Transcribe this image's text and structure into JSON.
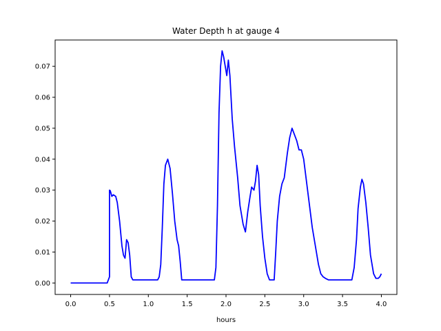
{
  "chart_data": {
    "type": "line",
    "title": "Water Depth h at gauge 4",
    "xlabel": "hours",
    "ylabel": "",
    "xlim": [
      -0.2,
      4.2
    ],
    "ylim": [
      -0.0037,
      0.0785
    ],
    "grid": false,
    "xticks": [
      0.0,
      0.5,
      1.0,
      1.5,
      2.0,
      2.5,
      3.0,
      3.5,
      4.0
    ],
    "xtick_labels": [
      "0.0",
      "0.5",
      "1.0",
      "1.5",
      "2.0",
      "2.5",
      "3.0",
      "3.5",
      "4.0"
    ],
    "yticks": [
      0.0,
      0.01,
      0.02,
      0.03,
      0.04,
      0.05,
      0.06,
      0.07
    ],
    "ytick_labels": [
      "0.00",
      "0.01",
      "0.02",
      "0.03",
      "0.04",
      "0.05",
      "0.06",
      "0.07"
    ],
    "series": [
      {
        "color": "#0000ff",
        "points": [
          [
            0.0,
            0.0
          ],
          [
            0.47,
            0.0
          ],
          [
            0.5,
            0.002
          ],
          [
            0.5,
            0.03
          ],
          [
            0.51,
            0.0298
          ],
          [
            0.53,
            0.028
          ],
          [
            0.55,
            0.0285
          ],
          [
            0.58,
            0.028
          ],
          [
            0.6,
            0.026
          ],
          [
            0.63,
            0.02
          ],
          [
            0.66,
            0.012
          ],
          [
            0.68,
            0.009
          ],
          [
            0.7,
            0.008
          ],
          [
            0.72,
            0.014
          ],
          [
            0.74,
            0.013
          ],
          [
            0.76,
            0.009
          ],
          [
            0.78,
            0.002
          ],
          [
            0.8,
            0.001
          ],
          [
            1.12,
            0.001
          ],
          [
            1.14,
            0.002
          ],
          [
            1.16,
            0.006
          ],
          [
            1.18,
            0.018
          ],
          [
            1.2,
            0.032
          ],
          [
            1.22,
            0.038
          ],
          [
            1.25,
            0.04
          ],
          [
            1.28,
            0.037
          ],
          [
            1.31,
            0.029
          ],
          [
            1.34,
            0.02
          ],
          [
            1.37,
            0.014
          ],
          [
            1.39,
            0.012
          ],
          [
            1.41,
            0.007
          ],
          [
            1.43,
            0.001
          ],
          [
            1.85,
            0.001
          ],
          [
            1.87,
            0.005
          ],
          [
            1.89,
            0.025
          ],
          [
            1.91,
            0.055
          ],
          [
            1.93,
            0.07
          ],
          [
            1.95,
            0.075
          ],
          [
            1.97,
            0.073
          ],
          [
            1.99,
            0.07
          ],
          [
            2.01,
            0.067
          ],
          [
            2.03,
            0.072
          ],
          [
            2.05,
            0.067
          ],
          [
            2.08,
            0.053
          ],
          [
            2.11,
            0.044
          ],
          [
            2.15,
            0.034
          ],
          [
            2.18,
            0.025
          ],
          [
            2.22,
            0.019
          ],
          [
            2.25,
            0.0165
          ],
          [
            2.28,
            0.023
          ],
          [
            2.31,
            0.028
          ],
          [
            2.33,
            0.031
          ],
          [
            2.36,
            0.03
          ],
          [
            2.38,
            0.033
          ],
          [
            2.4,
            0.038
          ],
          [
            2.42,
            0.035
          ],
          [
            2.44,
            0.025
          ],
          [
            2.47,
            0.015
          ],
          [
            2.5,
            0.008
          ],
          [
            2.53,
            0.003
          ],
          [
            2.56,
            0.001
          ],
          [
            2.62,
            0.001
          ],
          [
            2.64,
            0.01
          ],
          [
            2.66,
            0.02
          ],
          [
            2.69,
            0.028
          ],
          [
            2.72,
            0.032
          ],
          [
            2.75,
            0.034
          ],
          [
            2.79,
            0.042
          ],
          [
            2.82,
            0.047
          ],
          [
            2.85,
            0.05
          ],
          [
            2.88,
            0.048
          ],
          [
            2.91,
            0.046
          ],
          [
            2.94,
            0.043
          ],
          [
            2.97,
            0.043
          ],
          [
            3.0,
            0.04
          ],
          [
            3.04,
            0.032
          ],
          [
            3.08,
            0.024
          ],
          [
            3.11,
            0.018
          ],
          [
            3.15,
            0.012
          ],
          [
            3.19,
            0.006
          ],
          [
            3.22,
            0.003
          ],
          [
            3.25,
            0.002
          ],
          [
            3.28,
            0.0015
          ],
          [
            3.32,
            0.001
          ],
          [
            3.62,
            0.001
          ],
          [
            3.65,
            0.005
          ],
          [
            3.68,
            0.014
          ],
          [
            3.7,
            0.024
          ],
          [
            3.73,
            0.031
          ],
          [
            3.75,
            0.0335
          ],
          [
            3.77,
            0.032
          ],
          [
            3.8,
            0.026
          ],
          [
            3.83,
            0.018
          ],
          [
            3.86,
            0.009
          ],
          [
            3.9,
            0.003
          ],
          [
            3.93,
            0.0015
          ],
          [
            3.96,
            0.0015
          ],
          [
            3.98,
            0.002
          ],
          [
            4.0,
            0.003
          ]
        ]
      }
    ]
  }
}
